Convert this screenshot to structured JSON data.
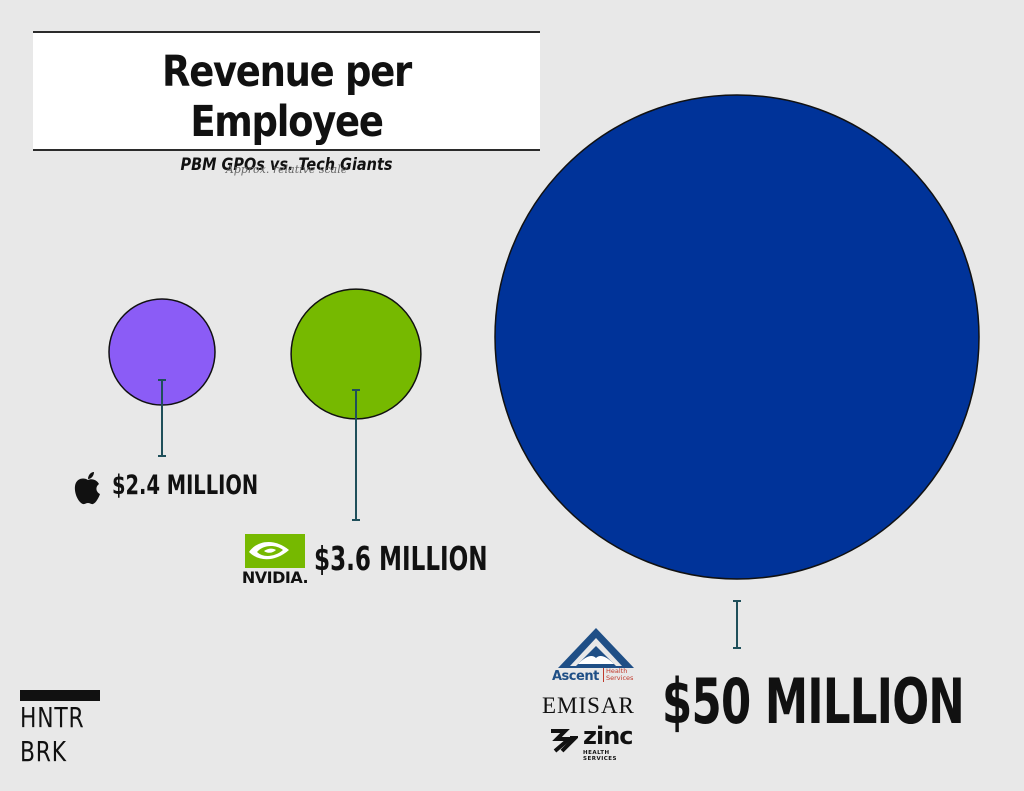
{
  "header": {
    "title": "Revenue per Employee",
    "subtitle": "PBM GPOs vs. Tech Giants",
    "note": "Approx. relative scale"
  },
  "chart_data": {
    "type": "bubble",
    "title": "Revenue per Employee",
    "subtitle": "PBM GPOs vs. Tech Giants",
    "unit": "USD per employee",
    "series": [
      {
        "entity": "Apple",
        "value": 2400000,
        "label": "$2.4 MILLION",
        "color": "#8b5cf6",
        "logos": [
          "apple-icon"
        ]
      },
      {
        "entity": "NVIDIA",
        "value": 3600000,
        "label": "$3.6 MILLION",
        "color": "#76b900",
        "logos": [
          "nvidia-icon"
        ]
      },
      {
        "entity": "PBM GPOs (Ascent, Emisar, Zinc)",
        "value": 50000000,
        "label": "$50 MILLION",
        "color": "#003399",
        "logos": [
          "ascent-icon",
          "emisar-wordmark",
          "zinc-icon"
        ]
      }
    ],
    "connector_color": "#1f4f5a",
    "stroke_color": "#111111",
    "grid": false,
    "legend": "none"
  },
  "logos": {
    "nvidia_text": "NVIDIA.",
    "ascent_text": "Ascent",
    "ascent_sub": "Health Services",
    "emisar_text": "EMISAR",
    "zinc_text": "zinc",
    "zinc_sub": "HEALTH SERVICES"
  },
  "brand": {
    "line1": "HNTR",
    "line2": "BRK"
  }
}
